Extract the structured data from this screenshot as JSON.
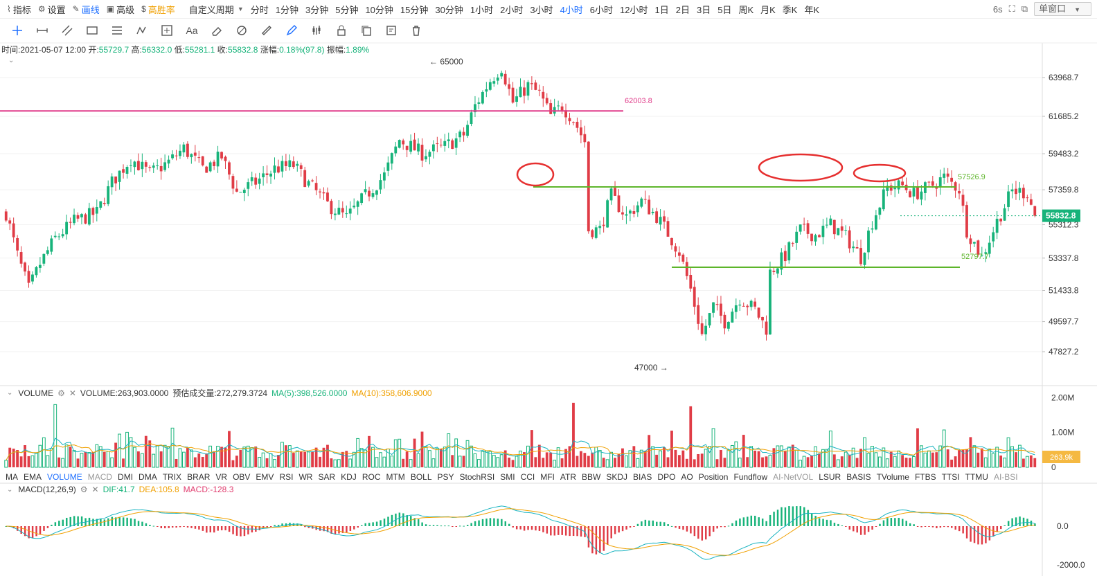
{
  "topbar": {
    "indicator": "指标",
    "settings": "设置",
    "draw": "画线",
    "advanced": "高级",
    "winrate": "高胜率",
    "custom_period": "自定义周期",
    "periods": [
      "分时",
      "1分钟",
      "3分钟",
      "5分钟",
      "10分钟",
      "15分钟",
      "30分钟",
      "1小时",
      "2小时",
      "3小时",
      "4小时",
      "6小时",
      "12小时",
      "1日",
      "2日",
      "3日",
      "5日",
      "周K",
      "月K",
      "季K",
      "年K"
    ],
    "active_period": "4小时",
    "refresh": "6s",
    "window_button": "单窗口"
  },
  "drawtools": [
    "crosshair-icon",
    "horizontal-segment-icon",
    "parallel-channel-icon",
    "rectangle-icon",
    "fib-lines-icon",
    "wave-icon",
    "measure-icon",
    "text-tool-icon",
    "eraser-icon",
    "hide-drawings-icon",
    "ruler-icon",
    "pen-icon",
    "kline-icon",
    "lock-icon",
    "copy-icon",
    "settings-doc-icon",
    "trash-icon"
  ],
  "text_tool": "Aa",
  "info": {
    "time_label": "时间:",
    "time": "2021-05-07 12:00",
    "open_label": "开:",
    "open": "55729.7",
    "high_label": "高:",
    "high": "56332.0",
    "low_label": "低:",
    "low": "55281.1",
    "close_label": "收:",
    "close": "55832.8",
    "change_label": "涨幅:",
    "change": "0.18%(97.8)",
    "amp_label": "振幅:",
    "amp": "1.89%"
  },
  "volume_panel": {
    "name": "VOLUME",
    "value": "VOLUME:263,903.0000",
    "estimate": "预估成交量:272,279.3724",
    "ma5": "MA(5):398,526.0000",
    "ma10": "MA(10):358,606.9000"
  },
  "macd_panel": {
    "name": "MACD(12,26,9)",
    "dif": "DIF:41.7",
    "dea": "DEA:105.8",
    "macd": "MACD:-128.3"
  },
  "indicators": [
    "MA",
    "EMA",
    "VOLUME",
    "MACD",
    "DMI",
    "DMA",
    "TRIX",
    "BRAR",
    "VR",
    "OBV",
    "EMV",
    "RSI",
    "WR",
    "SAR",
    "KDJ",
    "ROC",
    "MTM",
    "BOLL",
    "PSY",
    "StochRSI",
    "SMI",
    "CCI",
    "MFI",
    "ATR",
    "BBW",
    "SKDJ",
    "BIAS",
    "DPO",
    "AO",
    "Position",
    "Fundflow",
    "AI-NetVOL",
    "LSUR",
    "BASIS",
    "TVolume",
    "FTBS",
    "TTSI",
    "TTMU",
    "AI-BSI"
  ],
  "indicators_active": [
    "VOLUME"
  ],
  "indicators_dim": [
    "MACD",
    "AI-NetVOL",
    "AI-BSI"
  ],
  "colors": {
    "up": "#17b37a",
    "down": "#e03c46",
    "accent": "#1e6fff",
    "magenta_line": "#e03c8a",
    "green_line": "#5db52a",
    "circle": "#e63030",
    "ma5": "#17b3c0",
    "ma10": "#f0a000"
  },
  "chart_data": {
    "type": "candlestick",
    "price_axis_labels": [
      "63968.7",
      "61685.2",
      "59483.2",
      "57359.8",
      "55312.3",
      "53337.8",
      "51433.8",
      "49597.7",
      "47827.2"
    ],
    "price_range": [
      46500,
      66000
    ],
    "last_price": "55832.8",
    "high_marker": "65000",
    "low_marker": "47000",
    "horizontal_lines": [
      {
        "price": 62003.8,
        "label": "62003.8",
        "color": "magenta"
      },
      {
        "price": 57526.9,
        "label": "57526.9",
        "color": "green"
      },
      {
        "price": 52797.7,
        "label": "52797.7",
        "color": "green"
      }
    ],
    "close_path": [
      [
        0,
        56000
      ],
      [
        3,
        53500
      ],
      [
        6,
        51500
      ],
      [
        9,
        53000
      ],
      [
        13,
        54500
      ],
      [
        18,
        55500
      ],
      [
        24,
        56000
      ],
      [
        28,
        57800
      ],
      [
        33,
        59200
      ],
      [
        38,
        58300
      ],
      [
        43,
        59000
      ],
      [
        47,
        59800
      ],
      [
        52,
        58600
      ],
      [
        57,
        59300
      ],
      [
        61,
        57200
      ],
      [
        66,
        57800
      ],
      [
        71,
        58600
      ],
      [
        76,
        58800
      ],
      [
        80,
        57700
      ],
      [
        85,
        56500
      ],
      [
        90,
        55700
      ],
      [
        95,
        57000
      ],
      [
        100,
        58200
      ],
      [
        104,
        60300
      ],
      [
        110,
        59500
      ],
      [
        116,
        59900
      ],
      [
        121,
        60600
      ],
      [
        124,
        62300
      ],
      [
        128,
        63800
      ],
      [
        131,
        64600
      ],
      [
        134,
        62500
      ],
      [
        138,
        63500
      ],
      [
        141,
        63000
      ],
      [
        144,
        61700
      ],
      [
        147,
        62300
      ],
      [
        150,
        61500
      ],
      [
        153,
        60200
      ],
      [
        154,
        55000
      ],
      [
        157,
        55000
      ],
      [
        160,
        57000
      ],
      [
        164,
        55800
      ],
      [
        168,
        56700
      ],
      [
        172,
        55800
      ],
      [
        175,
        54800
      ],
      [
        178,
        53700
      ],
      [
        181,
        51500
      ],
      [
        184,
        48800
      ],
      [
        187,
        50500
      ],
      [
        190,
        49600
      ],
      [
        194,
        51000
      ],
      [
        198,
        50300
      ],
      [
        201,
        49200
      ],
      [
        202,
        52500
      ],
      [
        206,
        53500
      ],
      [
        210,
        55000
      ],
      [
        214,
        54700
      ],
      [
        218,
        55300
      ],
      [
        222,
        54600
      ],
      [
        226,
        53400
      ],
      [
        229,
        55500
      ],
      [
        233,
        57500
      ],
      [
        237,
        57600
      ],
      [
        240,
        57100
      ],
      [
        244,
        57500
      ],
      [
        248,
        58100
      ],
      [
        252,
        57400
      ],
      [
        254,
        55000
      ],
      [
        258,
        53400
      ],
      [
        262,
        55500
      ],
      [
        266,
        57300
      ],
      [
        270,
        57200
      ],
      [
        272,
        55832.8
      ]
    ],
    "volume_axis_labels": [
      "2.00M",
      "1.00M",
      "0"
    ],
    "volume_last": "263.9k",
    "macd_axis_labels": [
      "0.0",
      "-2000.0"
    ],
    "annotations": [
      "circle-left-top",
      "circle-right-top-1",
      "circle-right-top-2"
    ]
  }
}
